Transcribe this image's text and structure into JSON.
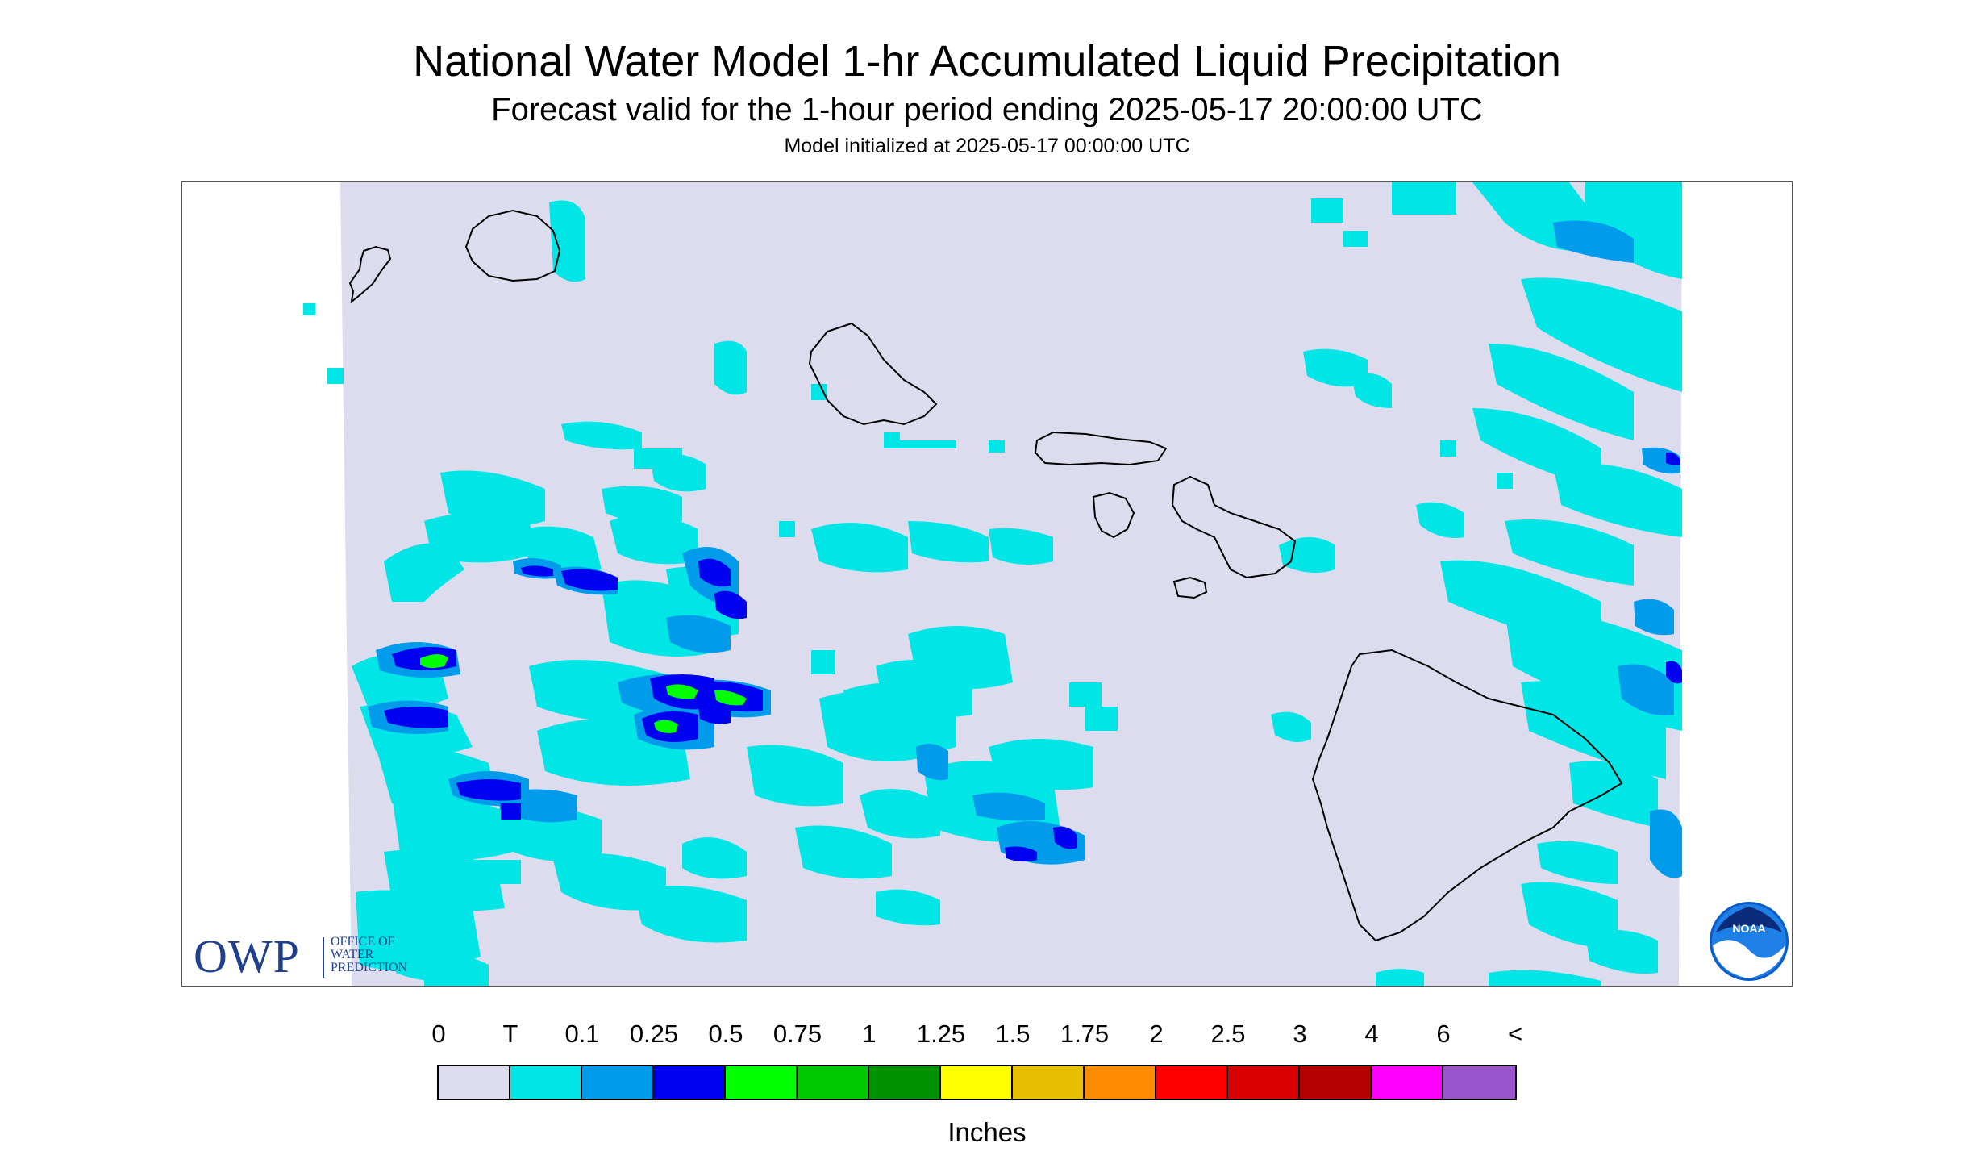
{
  "header": {
    "title": "National Water Model 1-hr Accumulated Liquid Precipitation",
    "subtitle": "Forecast valid for the 1-hour period ending 2025-05-17 20:00:00 UTC",
    "init": "Model initialized at 2025-05-17 00:00:00 UTC"
  },
  "logos": {
    "owp_acronym": "OWP",
    "owp_full": "OFFICE OF\nWATER\nPREDICTION",
    "noaa": "NOAA"
  },
  "legend": {
    "labels": [
      "0",
      "T",
      "0.1",
      "0.25",
      "0.5",
      "0.75",
      "1",
      "1.25",
      "1.5",
      "1.75",
      "2",
      "2.5",
      "3",
      "4",
      "6",
      "<"
    ],
    "colors": [
      "#dcdcee",
      "#00e6e6",
      "#009ceb",
      "#0000f0",
      "#00ff00",
      "#00c800",
      "#009100",
      "#ffff00",
      "#e6c000",
      "#ff8c00",
      "#ff0000",
      "#d80000",
      "#b40000",
      "#ff00ff",
      "#9955cc"
    ],
    "units": "Inches"
  },
  "map": {
    "background_color": "#dcdcee",
    "islands": [
      "Niihau",
      "Kauai",
      "Oahu",
      "Molokai",
      "Lanai",
      "Maui",
      "Kahoolawe",
      "Hawaii"
    ]
  }
}
